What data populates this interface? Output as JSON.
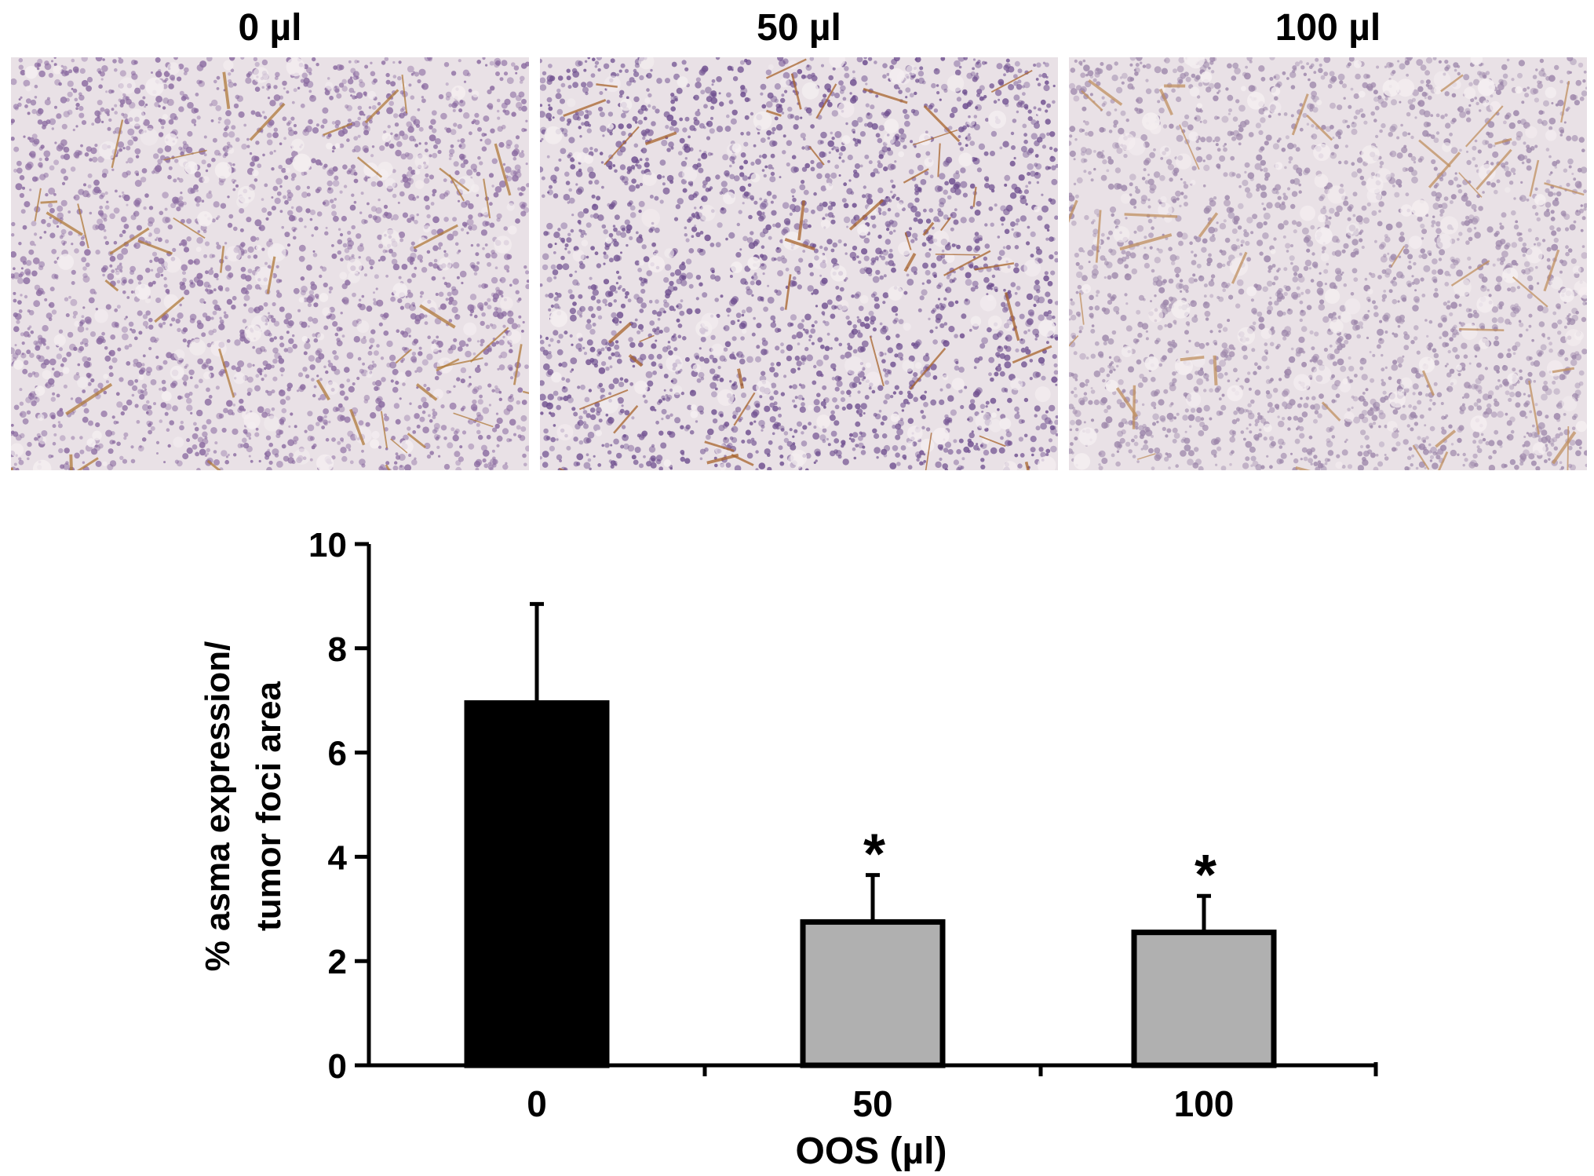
{
  "panels": [
    {
      "label": "0 µl",
      "tissue_color": "#8a6aa0",
      "stain_color": "#b07a3a"
    },
    {
      "label": "50 µl",
      "tissue_color": "#6f4f8f",
      "stain_color": "#a8642c"
    },
    {
      "label": "100 µl",
      "tissue_color": "#9c86aa",
      "stain_color": "#c09060"
    }
  ],
  "chart_data": {
    "type": "bar",
    "categories": [
      "0",
      "50",
      "100"
    ],
    "values": [
      6.95,
      2.75,
      2.55
    ],
    "errors": [
      1.9,
      0.9,
      0.7
    ],
    "significance": [
      "",
      "*",
      "*"
    ],
    "colors": [
      "#000000",
      "#b0b0b0",
      "#b0b0b0"
    ],
    "ylabel_line1": "% asma expression/",
    "ylabel_line2": "tumor foci area",
    "xlabel": "OOS  (µl)",
    "ylim": [
      0,
      10
    ],
    "yticks": [
      0,
      2,
      4,
      6,
      8,
      10
    ]
  }
}
